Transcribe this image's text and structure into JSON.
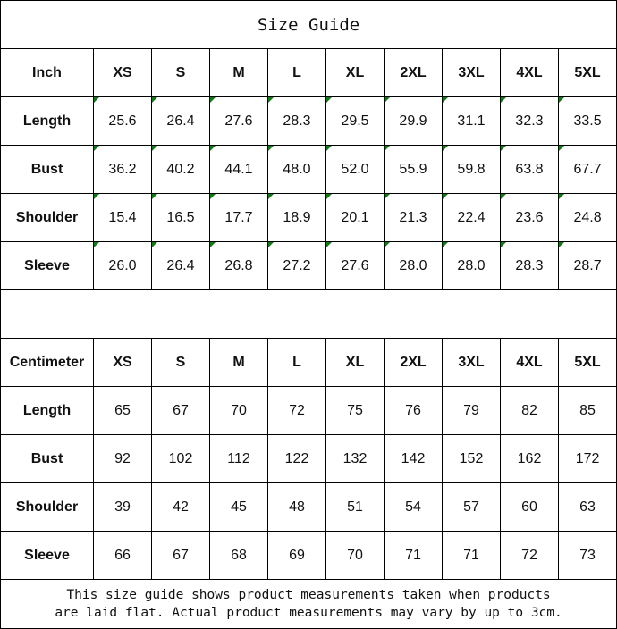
{
  "title": "Size Guide",
  "inch_table": {
    "unit_label": "Inch",
    "sizes": [
      "XS",
      "S",
      "M",
      "L",
      "XL",
      "2XL",
      "3XL",
      "4XL",
      "5XL"
    ],
    "rows": [
      {
        "label": "Length",
        "values": [
          "25.6",
          "26.4",
          "27.6",
          "28.3",
          "29.5",
          "29.9",
          "31.1",
          "32.3",
          "33.5"
        ]
      },
      {
        "label": "Bust",
        "values": [
          "36.2",
          "40.2",
          "44.1",
          "48.0",
          "52.0",
          "55.9",
          "59.8",
          "63.8",
          "67.7"
        ]
      },
      {
        "label": "Shoulder",
        "values": [
          "15.4",
          "16.5",
          "17.7",
          "18.9",
          "20.1",
          "21.3",
          "22.4",
          "23.6",
          "24.8"
        ]
      },
      {
        "label": "Sleeve",
        "values": [
          "26.0",
          "26.4",
          "26.8",
          "27.2",
          "27.6",
          "28.0",
          "28.0",
          "28.3",
          "28.7"
        ]
      }
    ]
  },
  "cm_table": {
    "unit_label": "Centimeter",
    "sizes": [
      "XS",
      "S",
      "M",
      "L",
      "XL",
      "2XL",
      "3XL",
      "4XL",
      "5XL"
    ],
    "rows": [
      {
        "label": "Length",
        "values": [
          "65",
          "67",
          "70",
          "72",
          "75",
          "76",
          "79",
          "82",
          "85"
        ]
      },
      {
        "label": "Bust",
        "values": [
          "92",
          "102",
          "112",
          "122",
          "132",
          "142",
          "152",
          "162",
          "172"
        ]
      },
      {
        "label": "Shoulder",
        "values": [
          "39",
          "42",
          "45",
          "48",
          "51",
          "54",
          "57",
          "60",
          "63"
        ]
      },
      {
        "label": "Sleeve",
        "values": [
          "66",
          "67",
          "68",
          "69",
          "70",
          "71",
          "71",
          "72",
          "73"
        ]
      }
    ]
  },
  "footer": {
    "line1": "This size guide shows product measurements taken when products",
    "line2": "are laid flat. Actual product measurements may vary by up to 3cm."
  },
  "colors": {
    "error_indicator": "#0a7d10",
    "grid": "#000000"
  }
}
